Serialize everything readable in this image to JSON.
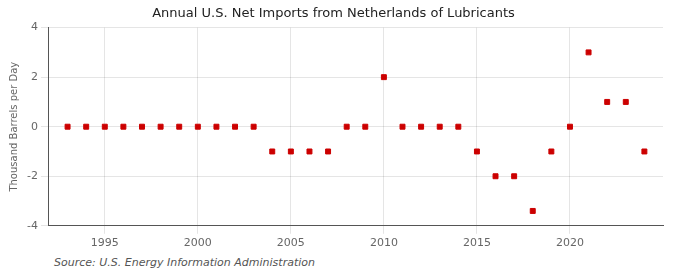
{
  "chart_data": {
    "type": "scatter",
    "title": "Annual U.S. Net Imports from Netherlands of Lubricants",
    "y_label": "Thousand Barrels per Day",
    "annotations": [
      "Source: U.S. Energy Information Administration"
    ],
    "x": [
      1993,
      1994,
      1995,
      1996,
      1997,
      1998,
      1999,
      2000,
      2001,
      2002,
      2003,
      2004,
      2005,
      2006,
      2007,
      2008,
      2009,
      2010,
      2011,
      2012,
      2013,
      2014,
      2015,
      2016,
      2017,
      2018,
      2019,
      2020,
      2021,
      2022,
      2023,
      2024
    ],
    "values": [
      0,
      0,
      0,
      0,
      0,
      0,
      0,
      0,
      0,
      0,
      0,
      -1,
      -1,
      -1,
      -1,
      0,
      0,
      2,
      0,
      0,
      0,
      0,
      -1,
      -2,
      -2,
      -3.4,
      -1,
      0,
      3,
      1,
      1,
      -1
    ],
    "color": "#cc0000",
    "marker": "square",
    "xlim": [
      1992,
      2025
    ],
    "xticks": [
      1995,
      2000,
      2005,
      2010,
      2015,
      2020
    ],
    "ylim": [
      -4,
      4
    ],
    "yticks": [
      -4,
      -2,
      0,
      2,
      4
    ],
    "grid": true
  }
}
